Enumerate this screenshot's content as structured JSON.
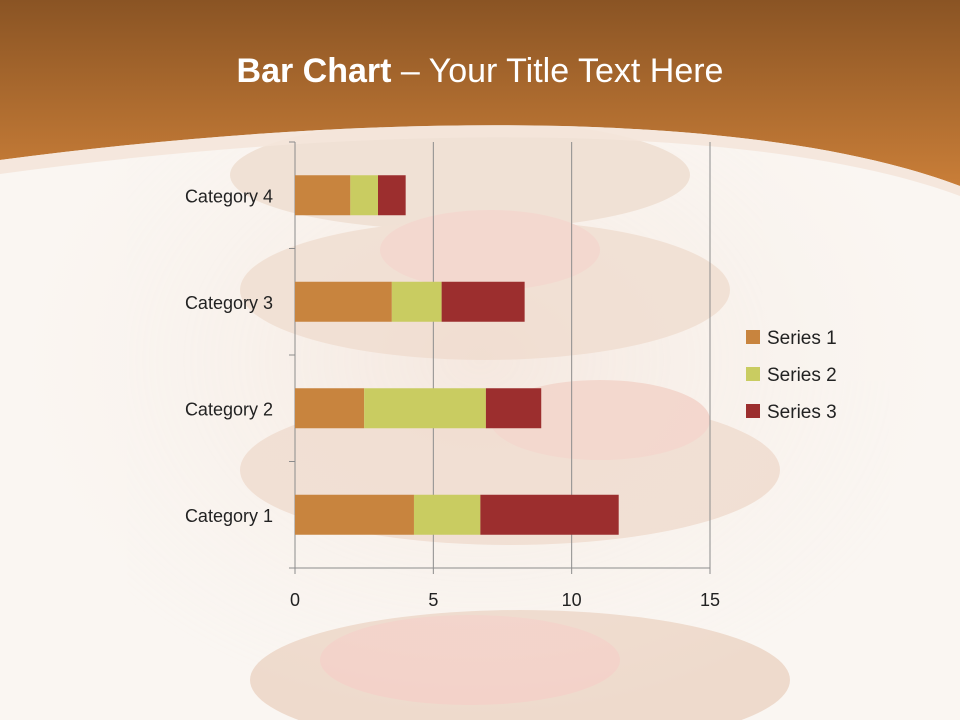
{
  "slide": {
    "title_bold": "Bar Chart",
    "title_rest": " – Your Title Text Here"
  },
  "colors": {
    "header": "#b8702e",
    "series": [
      "#c8843e",
      "#c9cc61",
      "#9c2e2e"
    ]
  },
  "chart_data": {
    "type": "bar",
    "orientation": "horizontal",
    "stacked": true,
    "categories": [
      "Category 1",
      "Category 2",
      "Category 3",
      "Category 4"
    ],
    "series": [
      {
        "name": "Series 1",
        "values": [
          4.3,
          2.5,
          3.5,
          2.0
        ]
      },
      {
        "name": "Series 2",
        "values": [
          2.4,
          4.4,
          1.8,
          1.0
        ]
      },
      {
        "name": "Series 3",
        "values": [
          5.0,
          2.0,
          3.0,
          1.0
        ]
      }
    ],
    "xlim": [
      0,
      15
    ],
    "xticks": [
      0,
      5,
      10,
      15
    ],
    "grid": true,
    "legend_position": "right"
  }
}
